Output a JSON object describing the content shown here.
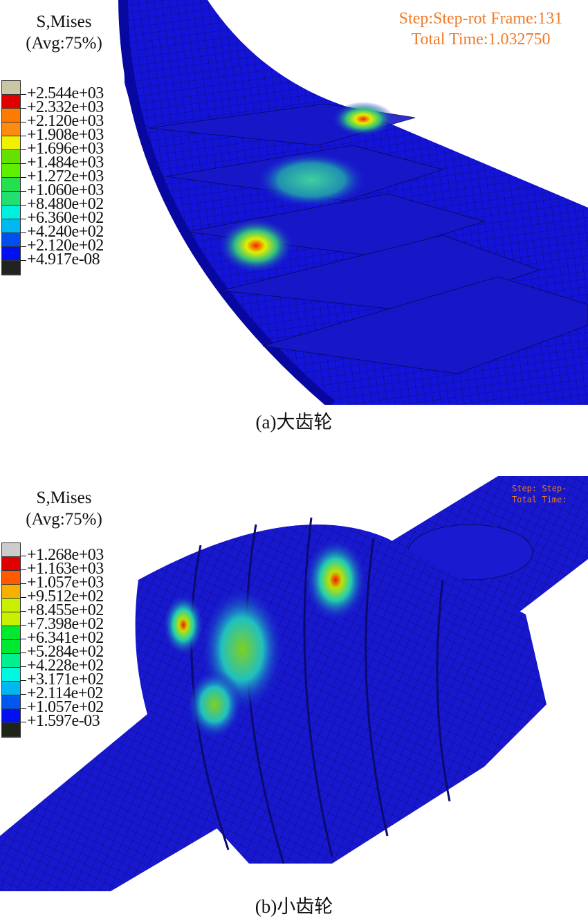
{
  "figure": {
    "panel_a": {
      "caption": "(a)大齿轮",
      "legend": {
        "title_line1": "S,Mises",
        "title_line2": "(Avg:75%)",
        "values": [
          "+2.544e+03",
          "+2.332e+03",
          "+2.120e+03",
          "+1.908e+03",
          "+1.696e+03",
          "+1.484e+03",
          "+1.272e+03",
          "+1.060e+03",
          "+8.480e+02",
          "+6.360e+02",
          "+4.240e+02",
          "+2.120e+02",
          "+4.917e-08"
        ],
        "colors": [
          "#c8c6a4",
          "#e00000",
          "#ff7a00",
          "#ff8a10",
          "#f0f000",
          "#66e000",
          "#5ef000",
          "#22e050",
          "#22e070",
          "#00f0e0",
          "#00b8f0",
          "#0050f0",
          "#0010f0",
          "#222222"
        ]
      },
      "status_line1": "Step:Step-rot Frame:131",
      "status_line2": "Total Time:1.032750"
    },
    "panel_b": {
      "caption": "(b)小齿轮",
      "legend": {
        "title_line1": "S,Mises",
        "title_line2": "(Avg:75%)",
        "values": [
          "+1.268e+03",
          "+1.163e+03",
          "+1.057e+03",
          "+9.512e+02",
          "+8.455e+02",
          "+7.398e+02",
          "+6.341e+02",
          "+5.284e+02",
          "+4.228e+02",
          "+3.171e+02",
          "+2.114e+02",
          "+1.057e+02",
          "+1.597e-03"
        ],
        "colors": [
          "#cccccc",
          "#e00000",
          "#ff5a00",
          "#f8b000",
          "#c8f000",
          "#c8f000",
          "#00e830",
          "#00e830",
          "#00f090",
          "#00f8e0",
          "#00b8f0",
          "#0058f0",
          "#0010f0",
          "#1e2418"
        ]
      },
      "status_line1": "Step: Step-",
      "status_line2": "Total Time:"
    },
    "mesh_color": "#1a1aa8",
    "hotspot_color": "#e00000"
  }
}
